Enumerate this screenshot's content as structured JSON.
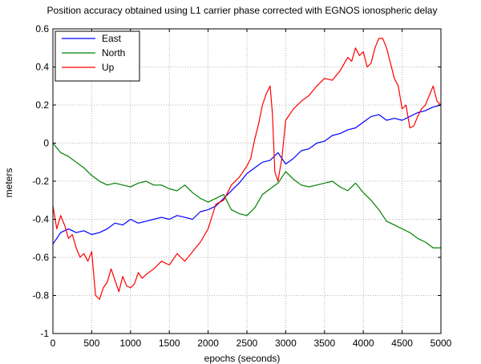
{
  "chart_data": {
    "type": "line",
    "title": "Position accuracy obtained using L1 carrier phase corrected with EGNOS ionospheric delay",
    "xlabel": "epochs (seconds)",
    "ylabel": "meters",
    "xlim": [
      0,
      5000
    ],
    "ylim": [
      -1,
      0.6
    ],
    "xticks": [
      0,
      500,
      1000,
      1500,
      2000,
      2500,
      3000,
      3500,
      4000,
      4500,
      5000
    ],
    "yticks": [
      -1,
      -0.8,
      -0.6,
      -0.4,
      -0.2,
      0,
      0.2,
      0.4,
      0.6
    ],
    "xtick_labels": [
      "0",
      "500",
      "1000",
      "1500",
      "2000",
      "2500",
      "3000",
      "3500",
      "4000",
      "4500",
      "5000"
    ],
    "ytick_labels": [
      "-1",
      "-0.8",
      "-0.6",
      "-0.4",
      "-0.2",
      "0",
      "0.2",
      "0.4",
      "0.6"
    ],
    "grid": true,
    "legend_position": "top-left",
    "series": [
      {
        "name": "East",
        "color": "#0000ff",
        "x": [
          0,
          100,
          200,
          300,
          400,
          500,
          600,
          700,
          800,
          900,
          1000,
          1100,
          1200,
          1300,
          1400,
          1500,
          1600,
          1700,
          1800,
          1900,
          2000,
          2100,
          2200,
          2300,
          2400,
          2500,
          2600,
          2700,
          2800,
          2900,
          3000,
          3100,
          3200,
          3300,
          3400,
          3500,
          3600,
          3700,
          3800,
          3900,
          4000,
          4100,
          4200,
          4300,
          4400,
          4500,
          4600,
          4700,
          4800,
          4900,
          5000
        ],
        "y": [
          -0.53,
          -0.47,
          -0.45,
          -0.47,
          -0.46,
          -0.48,
          -0.47,
          -0.45,
          -0.42,
          -0.43,
          -0.4,
          -0.42,
          -0.41,
          -0.4,
          -0.39,
          -0.4,
          -0.38,
          -0.39,
          -0.4,
          -0.36,
          -0.35,
          -0.33,
          -0.29,
          -0.25,
          -0.21,
          -0.16,
          -0.13,
          -0.1,
          -0.09,
          -0.05,
          -0.11,
          -0.08,
          -0.04,
          -0.03,
          0.0,
          0.01,
          0.04,
          0.05,
          0.07,
          0.08,
          0.11,
          0.14,
          0.15,
          0.12,
          0.13,
          0.12,
          0.14,
          0.16,
          0.17,
          0.19,
          0.2
        ]
      },
      {
        "name": "North",
        "color": "#008000",
        "x": [
          0,
          100,
          200,
          300,
          400,
          500,
          600,
          700,
          800,
          900,
          1000,
          1100,
          1200,
          1300,
          1400,
          1500,
          1600,
          1700,
          1800,
          1900,
          2000,
          2100,
          2200,
          2300,
          2400,
          2500,
          2600,
          2700,
          2800,
          2900,
          3000,
          3100,
          3200,
          3300,
          3400,
          3500,
          3600,
          3700,
          3800,
          3900,
          4000,
          4100,
          4200,
          4300,
          4400,
          4500,
          4600,
          4700,
          4800,
          4900,
          5000
        ],
        "y": [
          0.0,
          -0.05,
          -0.07,
          -0.1,
          -0.13,
          -0.17,
          -0.2,
          -0.22,
          -0.21,
          -0.22,
          -0.23,
          -0.21,
          -0.2,
          -0.22,
          -0.22,
          -0.24,
          -0.25,
          -0.22,
          -0.26,
          -0.29,
          -0.31,
          -0.29,
          -0.27,
          -0.35,
          -0.37,
          -0.38,
          -0.34,
          -0.27,
          -0.24,
          -0.21,
          -0.15,
          -0.19,
          -0.22,
          -0.23,
          -0.22,
          -0.21,
          -0.2,
          -0.23,
          -0.25,
          -0.21,
          -0.26,
          -0.3,
          -0.35,
          -0.41,
          -0.43,
          -0.45,
          -0.47,
          -0.5,
          -0.52,
          -0.55,
          -0.55
        ]
      },
      {
        "name": "Up",
        "color": "#ff0000",
        "x": [
          0,
          50,
          100,
          150,
          200,
          250,
          300,
          350,
          400,
          450,
          500,
          550,
          600,
          650,
          700,
          750,
          800,
          850,
          900,
          950,
          1000,
          1050,
          1100,
          1150,
          1200,
          1300,
          1400,
          1500,
          1600,
          1700,
          1800,
          1900,
          2000,
          2100,
          2200,
          2300,
          2400,
          2500,
          2550,
          2600,
          2650,
          2700,
          2750,
          2800,
          2830,
          2860,
          2900,
          2950,
          3000,
          3100,
          3200,
          3300,
          3400,
          3500,
          3600,
          3700,
          3800,
          3850,
          3900,
          3950,
          4000,
          4050,
          4100,
          4150,
          4200,
          4250,
          4300,
          4350,
          4400,
          4450,
          4500,
          4550,
          4600,
          4650,
          4700,
          4750,
          4800,
          4850,
          4900,
          4950,
          5000
        ],
        "y": [
          -0.33,
          -0.45,
          -0.38,
          -0.43,
          -0.5,
          -0.48,
          -0.55,
          -0.6,
          -0.58,
          -0.62,
          -0.57,
          -0.8,
          -0.82,
          -0.76,
          -0.73,
          -0.66,
          -0.72,
          -0.78,
          -0.7,
          -0.75,
          -0.76,
          -0.74,
          -0.68,
          -0.71,
          -0.69,
          -0.66,
          -0.62,
          -0.64,
          -0.58,
          -0.62,
          -0.57,
          -0.52,
          -0.45,
          -0.32,
          -0.3,
          -0.22,
          -0.18,
          -0.12,
          -0.08,
          0.02,
          0.1,
          0.2,
          0.26,
          0.3,
          0.15,
          -0.15,
          -0.2,
          -0.08,
          0.12,
          0.18,
          0.22,
          0.25,
          0.3,
          0.34,
          0.33,
          0.38,
          0.45,
          0.43,
          0.5,
          0.46,
          0.48,
          0.4,
          0.42,
          0.5,
          0.55,
          0.55,
          0.5,
          0.42,
          0.34,
          0.3,
          0.18,
          0.2,
          0.08,
          0.09,
          0.14,
          0.18,
          0.2,
          0.25,
          0.3,
          0.22,
          0.2
        ]
      }
    ]
  }
}
